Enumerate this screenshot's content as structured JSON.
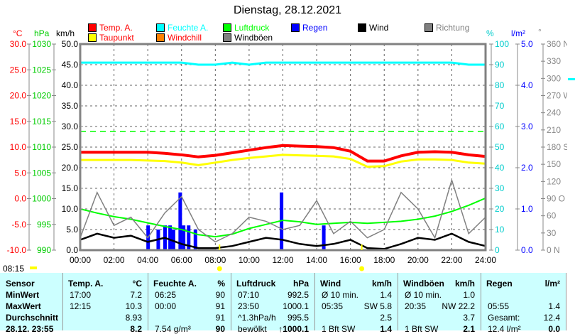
{
  "title": "Dienstag, 28.12.2021",
  "legend": [
    {
      "label": "Temp. A.",
      "color": "#ff0000"
    },
    {
      "label": "Taupunkt",
      "color": "#ffff00",
      "text_color": "#ff0000"
    },
    {
      "label": "Feuchte A.",
      "color": "#00ffff"
    },
    {
      "label": "Windchill",
      "color": "#ff8000",
      "text_color": "#ff0000"
    },
    {
      "label": "Luftdruck",
      "color": "#00ff00"
    },
    {
      "label": "Windböen",
      "color": "#808080",
      "text_color": "#000000"
    },
    {
      "label": "Regen",
      "color": "#0000ff"
    },
    {
      "label": "Wind",
      "color": "#000000"
    },
    {
      "label": "Richtung",
      "color": "#808080"
    }
  ],
  "axis_units": {
    "temp": "°C",
    "pressure": "hPa",
    "speed": "km/h",
    "humidity": "%",
    "rain": "l/m²",
    "direction": "°"
  },
  "current_time": "08:15",
  "chart_data": {
    "type": "line",
    "title": "Dienstag, 28.12.2021",
    "x_ticks": [
      "00:00",
      "02:00",
      "04:00",
      "06:00",
      "08:00",
      "10:00",
      "12:00",
      "14:00",
      "16:00",
      "18:00",
      "20:00",
      "22:00",
      "24:00"
    ],
    "axes": {
      "temp": {
        "range": [
          -10,
          30
        ],
        "ticks": [
          "30.0",
          "25.0",
          "20.0",
          "15.0",
          "10.0",
          "5.0",
          "0.0",
          "-5.0",
          "-10.0"
        ]
      },
      "pressure": {
        "range": [
          990,
          1030
        ],
        "ticks": [
          "1030",
          "1025",
          "1020",
          "1015",
          "1010",
          "1005",
          "1000",
          "995",
          "990"
        ]
      },
      "speed": {
        "range": [
          0,
          50
        ],
        "ticks": [
          "50.0",
          "45.0",
          "40.0",
          "35.0",
          "30.0",
          "25.0",
          "20.0",
          "15.0",
          "10.0",
          "5.0",
          "0.0"
        ]
      },
      "humidity": {
        "range": [
          0,
          100
        ],
        "ticks": [
          "100",
          "90",
          "80",
          "70",
          "60",
          "50",
          "40",
          "30",
          "20",
          "10",
          "0"
        ]
      },
      "rain": {
        "range": [
          0,
          5
        ],
        "ticks": [
          "5.0",
          "4.0",
          "3.0",
          "2.0",
          "1.0",
          "0.0"
        ]
      },
      "direction": {
        "range": [
          0,
          360
        ],
        "ticks": [
          "360 N",
          "330",
          "300",
          "270 W",
          "240",
          "210",
          "180 S",
          "150",
          "120",
          "90  O",
          "60",
          "30",
          "0    N"
        ]
      }
    },
    "hours": [
      0,
      1,
      2,
      3,
      4,
      5,
      6,
      7,
      8,
      9,
      10,
      11,
      12,
      13,
      14,
      15,
      16,
      17,
      18,
      19,
      20,
      21,
      22,
      23,
      24
    ],
    "series": [
      {
        "name": "Feuchte A.",
        "axis": "humidity",
        "color": "#00ffff",
        "values": [
          91,
          91,
          91,
          91,
          91,
          91,
          91,
          90,
          90,
          91,
          90,
          91,
          91,
          91,
          91,
          91,
          91,
          91,
          91,
          91,
          91,
          91,
          91,
          90,
          90
        ]
      },
      {
        "name": "Temp. A.",
        "axis": "temp",
        "color": "#ff0000",
        "values": [
          9.0,
          9.0,
          9.0,
          9.0,
          9.0,
          8.8,
          8.5,
          8.1,
          8.4,
          8.9,
          9.4,
          9.9,
          10.3,
          10.2,
          10.1,
          9.9,
          9.2,
          7.3,
          7.3,
          8.3,
          9.0,
          9.1,
          9.0,
          8.5,
          8.2
        ]
      },
      {
        "name": "Taupunkt",
        "axis": "temp",
        "color": "#ffff00",
        "values": [
          7.5,
          7.5,
          7.5,
          7.5,
          7.4,
          7.3,
          7.0,
          6.5,
          7.0,
          7.5,
          7.9,
          8.2,
          8.5,
          8.4,
          8.3,
          8.2,
          7.7,
          6.2,
          6.3,
          7.2,
          7.6,
          7.6,
          7.5,
          7.0,
          6.8
        ]
      },
      {
        "name": "Luftdruck",
        "axis": "pressure",
        "color": "#00ff00",
        "values": [
          998.0,
          997.2,
          996.5,
          996.0,
          995.3,
          994.6,
          994.0,
          993.0,
          992.6,
          993.1,
          994.2,
          995.0,
          995.8,
          995.5,
          995.0,
          995.2,
          995.4,
          995.2,
          995.4,
          995.6,
          996.0,
          996.6,
          997.5,
          998.7,
          1000.1
        ]
      },
      {
        "name": "Windböen",
        "axis": "speed",
        "color": "#808080",
        "values": [
          3,
          14,
          6,
          8,
          3,
          9,
          13,
          5,
          2,
          4,
          8,
          7,
          5,
          6,
          12,
          4,
          7,
          3,
          5,
          14,
          10,
          3,
          17,
          4,
          8
        ]
      },
      {
        "name": "Wind",
        "axis": "speed",
        "color": "#000000",
        "values": [
          2.5,
          4,
          3,
          3.5,
          2,
          3,
          1.5,
          0.5,
          0.5,
          1,
          2,
          3,
          2.5,
          1.5,
          1,
          1.5,
          2.5,
          0.5,
          0.3,
          1.5,
          3,
          2.5,
          4,
          2,
          1
        ]
      }
    ],
    "rain_bars": {
      "axis": "rain",
      "color": "#0000ff",
      "hours": [
        4.0,
        4.6,
        5.0,
        5.3,
        5.5,
        5.9,
        6.1,
        6.4,
        6.8,
        11.9,
        14.4
      ],
      "values": [
        0.6,
        0.5,
        0.6,
        0.6,
        0.5,
        1.4,
        0.6,
        0.6,
        0.5,
        1.4,
        0.6
      ]
    },
    "sunrise": "08:15",
    "sunset": "16:40"
  },
  "table": {
    "headers": [
      [
        "Sensor",
        ""
      ],
      [
        "Temp. A.",
        "°C"
      ],
      [
        "Feuchte A.",
        "%"
      ],
      [
        "Luftdruck",
        "hPa"
      ],
      [
        "Wind",
        "km/h"
      ],
      [
        "Windböen",
        "km/h"
      ],
      [
        "Regen",
        "l/m²"
      ]
    ],
    "rows": [
      {
        "label": "MinWert",
        "cells": [
          [
            "17:00",
            "7.2"
          ],
          [
            "06:25",
            "90"
          ],
          [
            "07:10",
            "992.5"
          ],
          [
            "Ø 10 min.",
            "1.4"
          ],
          [
            "Ø 10 min.",
            "1.0"
          ],
          [
            "",
            ""
          ]
        ]
      },
      {
        "label": "MaxWert",
        "cells": [
          [
            "12:15",
            "10.3"
          ],
          [
            "00:00",
            "91"
          ],
          [
            "23:50",
            "1000.1"
          ],
          [
            "05:35",
            "SW 5.8"
          ],
          [
            "20:35",
            "NW 22.2"
          ],
          [
            "05:55",
            "1.4"
          ]
        ]
      },
      {
        "label": "Durchschnitt",
        "cells": [
          [
            "",
            "8.93"
          ],
          [
            "",
            "91"
          ],
          [
            "^1.3hPa/h",
            "995.5"
          ],
          [
            "",
            "2.5"
          ],
          [
            "",
            "3.7"
          ],
          [
            "Gesamt:",
            "12.4"
          ]
        ]
      },
      {
        "label": "28.12. 23:55",
        "cells": [
          [
            "",
            "8.2"
          ],
          [
            "7.54 g/m³",
            "90"
          ],
          [
            "bewölkt",
            "↑1000.1"
          ],
          [
            "1 Bft SW",
            "1.4"
          ],
          [
            "1 Bft SW",
            "2.1"
          ],
          [
            "12.4 l/m²",
            "0.0"
          ]
        ]
      }
    ]
  }
}
